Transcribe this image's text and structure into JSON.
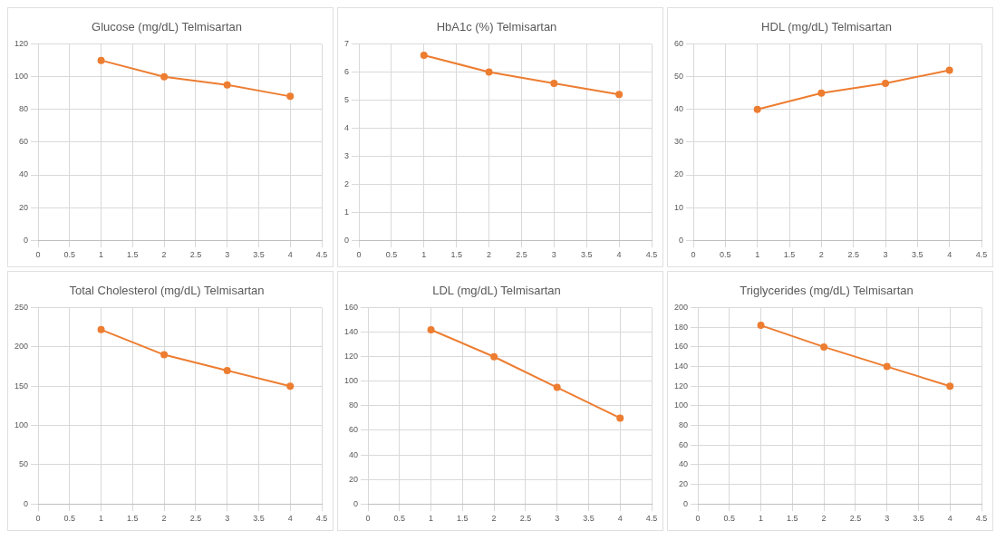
{
  "chart_data": [
    {
      "type": "line",
      "title": "Glucose (mg/dL) Telmisartan",
      "x": [
        1,
        2,
        3,
        4
      ],
      "series": [
        {
          "color": "#ed7d31",
          "values": [
            110,
            100,
            95,
            88
          ]
        }
      ],
      "xlim": [
        0,
        4.5
      ],
      "xticks": [
        0,
        0.5,
        1,
        1.5,
        2,
        2.5,
        3,
        3.5,
        4,
        4.5
      ],
      "ylim": [
        0,
        120
      ],
      "yticks": [
        0,
        20,
        40,
        60,
        80,
        100,
        120
      ],
      "grid": true,
      "marker": "circle",
      "line_style": "solid"
    },
    {
      "type": "line",
      "title": "HbA1c (%) Telmisartan",
      "x": [
        1,
        2,
        3,
        4
      ],
      "series": [
        {
          "color": "#ed7d31",
          "values": [
            6.6,
            6.0,
            5.6,
            5.2
          ]
        }
      ],
      "xlim": [
        0,
        4.5
      ],
      "xticks": [
        0,
        0.5,
        1,
        1.5,
        2,
        2.5,
        3,
        3.5,
        4,
        4.5
      ],
      "ylim": [
        0,
        7
      ],
      "yticks": [
        0,
        1,
        2,
        3,
        4,
        5,
        6,
        7
      ],
      "grid": true,
      "marker": "circle",
      "line_style": "solid"
    },
    {
      "type": "line",
      "title": "HDL (mg/dL) Telmisartan",
      "x": [
        1,
        2,
        3,
        4
      ],
      "series": [
        {
          "color": "#ed7d31",
          "values": [
            40,
            45,
            48,
            52
          ]
        }
      ],
      "xlim": [
        0,
        4.5
      ],
      "xticks": [
        0,
        0.5,
        1,
        1.5,
        2,
        2.5,
        3,
        3.5,
        4,
        4.5
      ],
      "ylim": [
        0,
        60
      ],
      "yticks": [
        0,
        10,
        20,
        30,
        40,
        50,
        60
      ],
      "grid": true,
      "marker": "circle",
      "line_style": "solid"
    },
    {
      "type": "line",
      "title": "Total Cholesterol (mg/dL) Telmisartan",
      "x": [
        1,
        2,
        3,
        4
      ],
      "series": [
        {
          "color": "#ed7d31",
          "values": [
            222,
            190,
            170,
            150
          ]
        }
      ],
      "xlim": [
        0,
        4.5
      ],
      "xticks": [
        0,
        0.5,
        1,
        1.5,
        2,
        2.5,
        3,
        3.5,
        4,
        4.5
      ],
      "ylim": [
        0,
        250
      ],
      "yticks": [
        0,
        50,
        100,
        150,
        200,
        250
      ],
      "grid": true,
      "marker": "circle",
      "line_style": "solid"
    },
    {
      "type": "line",
      "title": "LDL (mg/dL) Telmisartan",
      "x": [
        1,
        2,
        3,
        4
      ],
      "series": [
        {
          "color": "#ed7d31",
          "values": [
            142,
            120,
            95,
            70
          ]
        }
      ],
      "xlim": [
        0,
        4.5
      ],
      "xticks": [
        0,
        0.5,
        1,
        1.5,
        2,
        2.5,
        3,
        3.5,
        4,
        4.5
      ],
      "ylim": [
        0,
        160
      ],
      "yticks": [
        0,
        20,
        40,
        60,
        80,
        100,
        120,
        140,
        160
      ],
      "grid": true,
      "marker": "circle",
      "line_style": "solid"
    },
    {
      "type": "line",
      "title": "Triglycerides (mg/dL) Telmisartan",
      "x": [
        1,
        2,
        3,
        4
      ],
      "series": [
        {
          "color": "#ed7d31",
          "values": [
            182,
            160,
            140,
            120
          ]
        }
      ],
      "xlim": [
        0,
        4.5
      ],
      "xticks": [
        0,
        0.5,
        1,
        1.5,
        2,
        2.5,
        3,
        3.5,
        4,
        4.5
      ],
      "ylim": [
        0,
        200
      ],
      "yticks": [
        0,
        20,
        40,
        60,
        80,
        100,
        120,
        140,
        160,
        180,
        200
      ],
      "grid": true,
      "marker": "circle",
      "line_style": "solid"
    }
  ]
}
